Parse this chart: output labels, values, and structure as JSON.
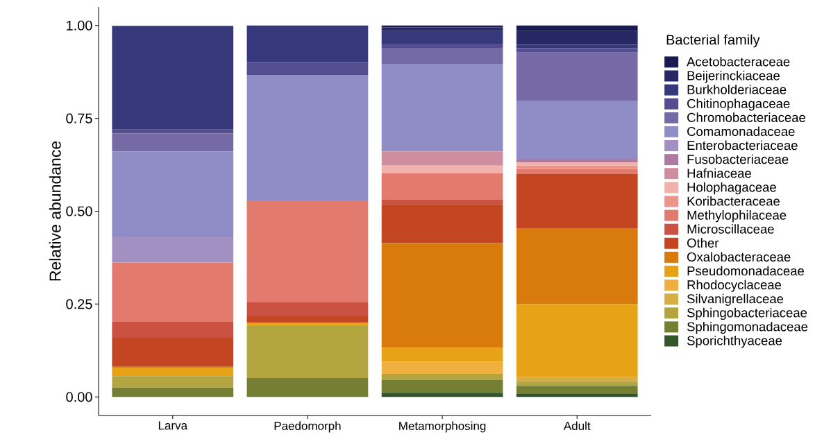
{
  "chart_data": {
    "type": "bar",
    "stacked": true,
    "ylabel": "Relative abundance",
    "legend_title": "Bacterial family",
    "legend": "right",
    "grid": false,
    "categories": [
      "Larva",
      "Paedomorph",
      "Metamorphosing",
      "Adult"
    ],
    "ylim": [
      -0.05,
      1.05
    ],
    "yticks": [
      {
        "value": 0,
        "label": "0.00"
      },
      {
        "value": 0.25,
        "label": "0.25"
      },
      {
        "value": 0.5,
        "label": "0.50"
      },
      {
        "value": 0.75,
        "label": "0.75"
      },
      {
        "value": 1,
        "label": "1.00"
      }
    ],
    "series": [
      {
        "name": "Sporichthyaceae",
        "color": "#33552a",
        "values": [
          0,
          0,
          0.011,
          0.008
        ]
      },
      {
        "name": "Sphingomonadaceae",
        "color": "#747f33",
        "values": [
          0.025,
          0.051,
          0.035,
          0.022
        ]
      },
      {
        "name": "Sphingobacteriaceae",
        "color": "#b3a53f",
        "values": [
          0.031,
          0.14,
          0.016,
          0.011
        ]
      },
      {
        "name": "Silvanigrellaceae",
        "color": "#d7ad45",
        "values": [
          0,
          0,
          0,
          0.012
        ]
      },
      {
        "name": "Rhodocyclaceae",
        "color": "#f0b040",
        "values": [
          0,
          0,
          0.033,
          0
        ]
      },
      {
        "name": "Pseudomonadaceae",
        "color": "#e8a215",
        "values": [
          0.023,
          0.009,
          0.037,
          0.197
        ]
      },
      {
        "name": "Oxalobacteraceae",
        "color": "#d97a0c",
        "values": [
          0.002,
          0,
          0.282,
          0.203
        ]
      },
      {
        "name": "Other",
        "color": "#c44522",
        "values": [
          0.078,
          0.017,
          0.105,
          0.148
        ]
      },
      {
        "name": "Microscillaceae",
        "color": "#cb5243",
        "values": [
          0.043,
          0.039,
          0.012,
          0
        ]
      },
      {
        "name": "Methylophilaceae",
        "color": "#e27b6d",
        "values": [
          0.16,
          0.273,
          0.071,
          0.013
        ]
      },
      {
        "name": "Koribacteraceae",
        "color": "#ec958a",
        "values": [
          0,
          0,
          0,
          0.009
        ]
      },
      {
        "name": "Holophagaceae",
        "color": "#f2b1ad",
        "values": [
          0,
          0,
          0.021,
          0.008
        ]
      },
      {
        "name": "Hafniaceae",
        "color": "#cf8e9f",
        "values": [
          0,
          0,
          0.038,
          0
        ]
      },
      {
        "name": "Fusobacteriaceae",
        "color": "#ae7ba0",
        "values": [
          0,
          0,
          0,
          0.01
        ]
      },
      {
        "name": "Enterobacteriaceae",
        "color": "#a290c3",
        "values": [
          0.07,
          0,
          0,
          0
        ]
      },
      {
        "name": "Comamonadaceae",
        "color": "#8f8cc6",
        "values": [
          0.229,
          0.338,
          0.236,
          0.157
        ]
      },
      {
        "name": "Chromobacteriaceae",
        "color": "#7569a6",
        "values": [
          0.048,
          0,
          0.043,
          0.129
        ]
      },
      {
        "name": "Chitinophagaceae",
        "color": "#544e90",
        "values": [
          0.011,
          0.035,
          0.011,
          0.012
        ]
      },
      {
        "name": "Burkholderiaceae",
        "color": "#35397c",
        "values": [
          0.279,
          0.098,
          0.034,
          0.009
        ]
      },
      {
        "name": "Beijerinckiaceae",
        "color": "#262764",
        "values": [
          0,
          0,
          0.01,
          0.037
        ]
      },
      {
        "name": "Acetobacteraceae",
        "color": "#1a1a52",
        "values": [
          0,
          0,
          0.005,
          0.015
        ]
      }
    ]
  }
}
